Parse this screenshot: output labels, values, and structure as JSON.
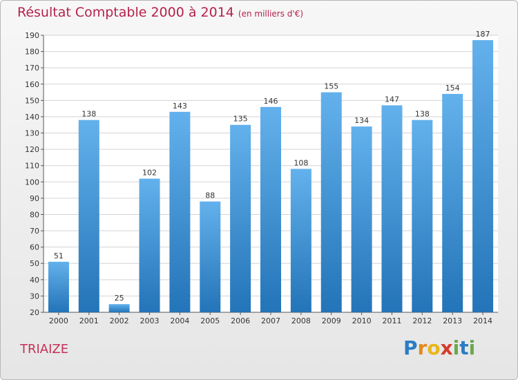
{
  "header": {
    "title": "Résultat Comptable 2000 à 2014",
    "unit": "(en milliers d'€)"
  },
  "footer": {
    "place": "TRIAIZE",
    "logo_letters": [
      "P",
      "r",
      "o",
      "x",
      "i",
      "t",
      "i"
    ],
    "logo_colors": [
      "#2b7cc4",
      "#e48a1b",
      "#e9b618",
      "#d63a2c",
      "#6aa84f",
      "#2b7cc4",
      "#6aa84f"
    ]
  },
  "colors": {
    "bar_top": "#63b1ec",
    "bar_bottom": "#2374b8",
    "grid": "#d3d3d3"
  },
  "chart_data": {
    "type": "bar",
    "title": "Résultat Comptable 2000 à 2014",
    "subtitle": "(en milliers d'€)",
    "categories": [
      "2000",
      "2001",
      "2002",
      "2003",
      "2004",
      "2005",
      "2006",
      "2007",
      "2008",
      "2009",
      "2010",
      "2011",
      "2012",
      "2013",
      "2014"
    ],
    "values": [
      51,
      138,
      25,
      102,
      143,
      88,
      135,
      146,
      108,
      155,
      134,
      147,
      138,
      154,
      187
    ],
    "ylim": [
      20,
      190
    ],
    "yticks": [
      20,
      30,
      40,
      50,
      60,
      70,
      80,
      90,
      100,
      110,
      120,
      130,
      140,
      150,
      160,
      170,
      180,
      190
    ],
    "grid": true,
    "data_labels": true
  }
}
